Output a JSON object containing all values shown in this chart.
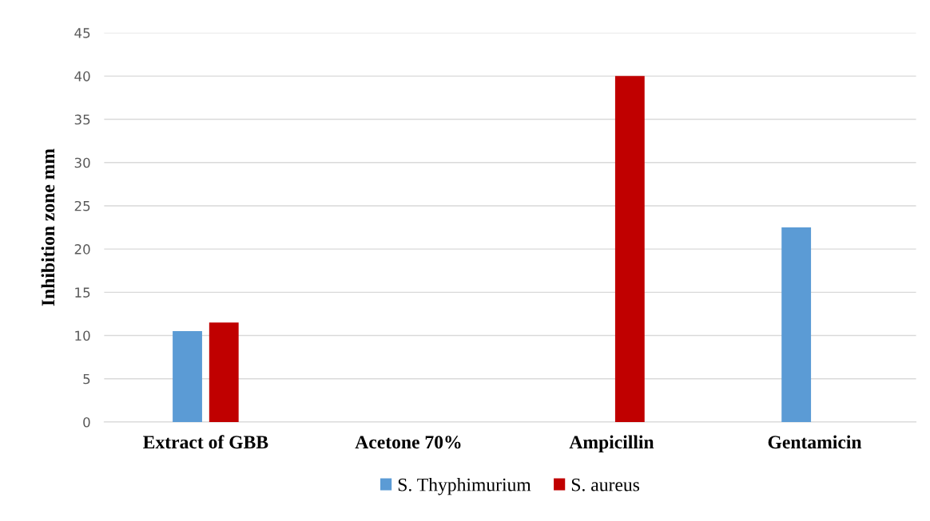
{
  "chart_data": {
    "type": "bar",
    "ylabel": "Inhibition zone mm",
    "categories": [
      "Extract of GBB",
      "Acetone 70%",
      "Ampicillin",
      "Gentamicin"
    ],
    "series": [
      {
        "name": "S. Thyphimurium",
        "color": "#5b9bd5",
        "values": [
          10.5,
          0,
          0,
          22.5
        ]
      },
      {
        "name": "S. aureus",
        "color": "#c00000",
        "values": [
          11.5,
          0,
          40,
          0
        ]
      }
    ],
    "ylim": [
      0,
      45
    ],
    "yticks": [
      0,
      5,
      10,
      15,
      20,
      25,
      30,
      35,
      40,
      45
    ],
    "grid": "y",
    "legend": "bottom"
  }
}
